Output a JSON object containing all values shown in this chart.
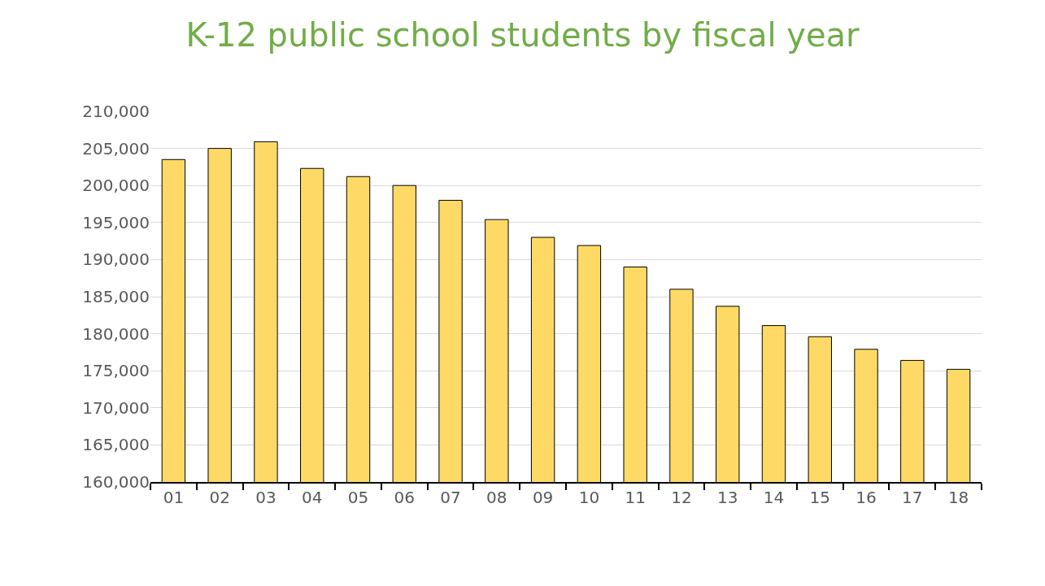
{
  "chart_data": {
    "type": "bar",
    "title": "K-12 public school students by fiscal year",
    "categories": [
      "01",
      "02",
      "03",
      "04",
      "05",
      "06",
      "07",
      "08",
      "09",
      "10",
      "11",
      "12",
      "13",
      "14",
      "15",
      "16",
      "17",
      "18"
    ],
    "values": [
      203500,
      205000,
      205900,
      202300,
      201200,
      200000,
      198000,
      195400,
      193000,
      191900,
      189000,
      186000,
      183700,
      181100,
      179600,
      177900,
      176400,
      175200
    ],
    "color": "#ffd966",
    "ylim": [
      160000,
      210000
    ],
    "yticks": [
      {
        "value": 160000,
        "label": "160,000"
      },
      {
        "value": 165000,
        "label": "165,000"
      },
      {
        "value": 170000,
        "label": "170,000"
      },
      {
        "value": 175000,
        "label": "175,000"
      },
      {
        "value": 180000,
        "label": "180,000"
      },
      {
        "value": 185000,
        "label": "185,000"
      },
      {
        "value": 190000,
        "label": "190,000"
      },
      {
        "value": 195000,
        "label": "195,000"
      },
      {
        "value": 200000,
        "label": "200,000"
      },
      {
        "value": 205000,
        "label": "205,000"
      },
      {
        "value": 210000,
        "label": "210,000"
      }
    ],
    "grid": "y"
  }
}
